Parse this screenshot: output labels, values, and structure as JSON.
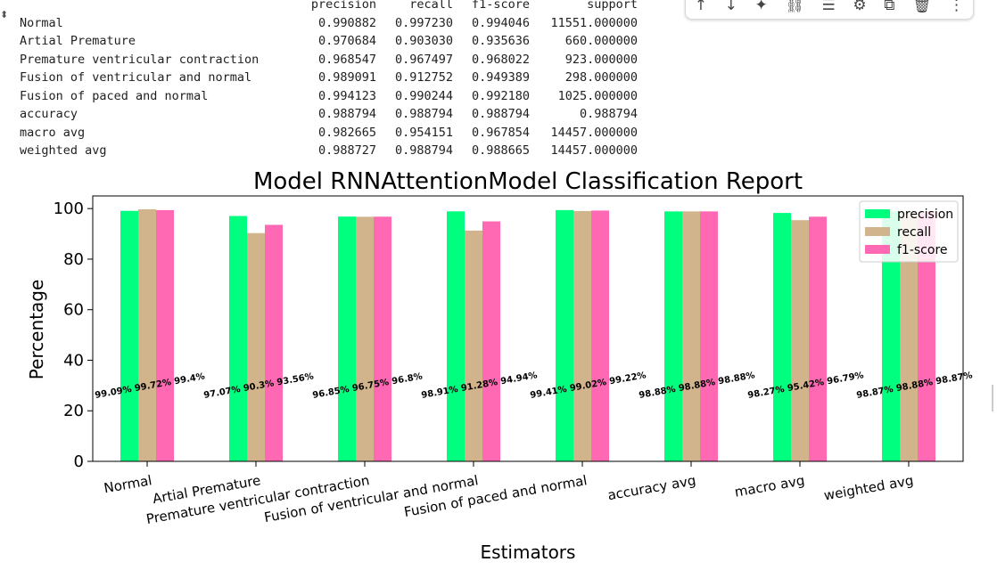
{
  "report": {
    "headers": [
      "precision",
      "recall",
      "f1-score",
      "support"
    ],
    "rows": [
      {
        "label": "Normal",
        "values": [
          "0.990882",
          "0.997230",
          "0.994046",
          "11551.000000"
        ]
      },
      {
        "label": "Artial Premature",
        "values": [
          "0.970684",
          "0.903030",
          "0.935636",
          "660.000000"
        ]
      },
      {
        "label": "Premature ventricular contraction",
        "values": [
          "0.968547",
          "0.967497",
          "0.968022",
          "923.000000"
        ]
      },
      {
        "label": "Fusion of ventricular and normal",
        "values": [
          "0.989091",
          "0.912752",
          "0.949389",
          "298.000000"
        ]
      },
      {
        "label": "Fusion of paced and normal",
        "values": [
          "0.994123",
          "0.990244",
          "0.992180",
          "1025.000000"
        ]
      },
      {
        "label": "accuracy",
        "values": [
          "0.988794",
          "0.988794",
          "0.988794",
          "0.988794"
        ]
      },
      {
        "label": "macro avg",
        "values": [
          "0.982665",
          "0.954151",
          "0.967854",
          "14457.000000"
        ]
      },
      {
        "label": "weighted avg",
        "values": [
          "0.988727",
          "0.988794",
          "0.988665",
          "14457.000000"
        ]
      }
    ]
  },
  "toolbar": {
    "icons": [
      {
        "name": "arrow-up-icon",
        "glyph": "↑"
      },
      {
        "name": "arrow-down-icon",
        "glyph": "↓"
      },
      {
        "name": "sparkle-icon",
        "glyph": "✦"
      },
      {
        "name": "link-icon",
        "glyph": "⛓"
      },
      {
        "name": "comment-icon",
        "glyph": "☰"
      },
      {
        "name": "gear-icon",
        "glyph": "⚙"
      },
      {
        "name": "mirror-icon",
        "glyph": "⧉"
      },
      {
        "name": "trash-icon",
        "glyph": "🗑"
      },
      {
        "name": "more-icon",
        "glyph": "⋮"
      }
    ]
  },
  "chart_data": {
    "type": "bar",
    "title": "Model RNNAttentionModel Classification Report",
    "xlabel": "Estimators",
    "ylabel": "Percentage",
    "ylim": [
      0,
      105
    ],
    "yticks": [
      0,
      20,
      40,
      60,
      80,
      100
    ],
    "grid": false,
    "legend_position": "top-right",
    "categories": [
      "Normal",
      "Artial Premature",
      "Premature ventricular contraction",
      "Fusion of ventricular and normal",
      "Fusion of paced and normal",
      "accuracy avg",
      "macro avg",
      "weighted avg"
    ],
    "series": [
      {
        "name": "precision",
        "color": "#00ff7f",
        "values": [
          99.09,
          97.07,
          96.85,
          98.91,
          99.41,
          98.88,
          98.27,
          98.87
        ]
      },
      {
        "name": "recall",
        "color": "#d2b48c",
        "values": [
          99.72,
          90.3,
          96.75,
          91.28,
          99.02,
          98.88,
          95.42,
          98.88
        ]
      },
      {
        "name": "f1-score",
        "color": "#ff69b4",
        "values": [
          99.4,
          93.56,
          96.8,
          94.94,
          99.22,
          98.88,
          96.79,
          98.87
        ]
      }
    ],
    "annotations": [
      "99.09% 99.72% 99.4%",
      "97.07% 90.3% 93.56%",
      "96.85% 96.75% 96.8%",
      "98.91% 91.28% 94.94%",
      "99.41% 99.02% 99.22%",
      "98.88% 98.88% 98.88%",
      "98.27% 95.42% 96.79%",
      "98.87% 98.88% 98.87%"
    ]
  }
}
